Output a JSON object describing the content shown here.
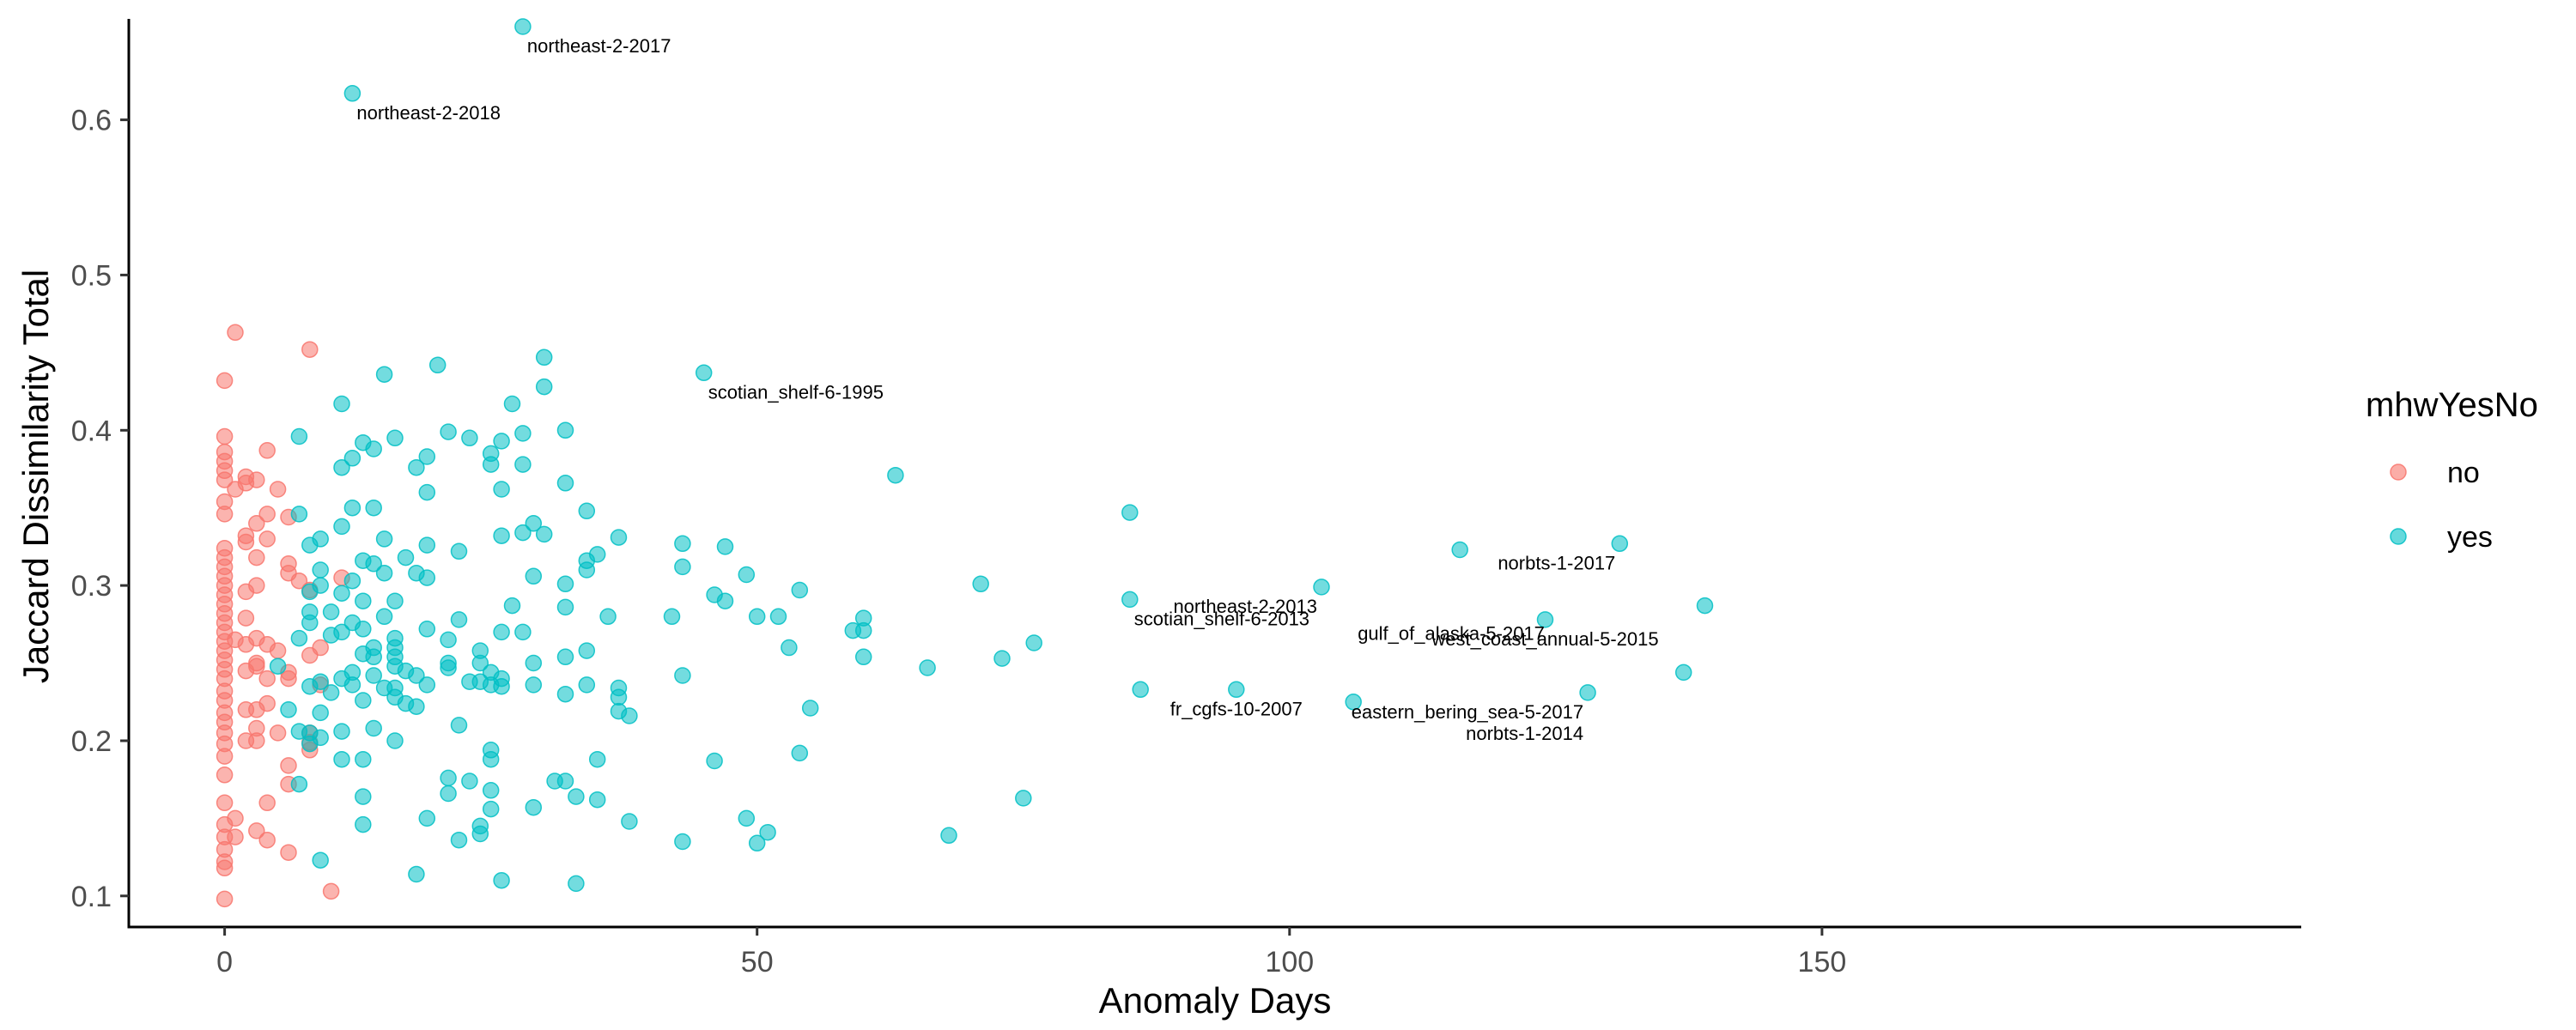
{
  "chart_data": {
    "type": "scatter",
    "xlabel": "Anomaly Days",
    "ylabel": "Jaccard Dissimilarity Total",
    "xlim": [
      -9,
      195
    ],
    "ylim": [
      0.08,
      0.665
    ],
    "x_ticks": [
      0,
      50,
      100,
      150
    ],
    "y_ticks": [
      0.1,
      0.2,
      0.3,
      0.4,
      0.5,
      0.6
    ],
    "x_tick_labels": [
      "0",
      "50",
      "100",
      "150"
    ],
    "y_tick_labels": [
      "0.1",
      "0.2",
      "0.3",
      "0.4",
      "0.5",
      "0.6"
    ],
    "grid": false,
    "legend": {
      "title": "mhwYesNo",
      "position": "right",
      "entries": [
        {
          "label": "no",
          "color": "#F8766D"
        },
        {
          "label": "yes",
          "color": "#00BFC4"
        }
      ]
    },
    "series": [
      {
        "name": "no",
        "color": "#F8766D",
        "points": [
          [
            0,
            0.098
          ],
          [
            0,
            0.118
          ],
          [
            0,
            0.122
          ],
          [
            0,
            0.13
          ],
          [
            0,
            0.138
          ],
          [
            0,
            0.146
          ],
          [
            0,
            0.16
          ],
          [
            0,
            0.178
          ],
          [
            0,
            0.19
          ],
          [
            0,
            0.198
          ],
          [
            0,
            0.205
          ],
          [
            0,
            0.212
          ],
          [
            0,
            0.218
          ],
          [
            0,
            0.226
          ],
          [
            0,
            0.232
          ],
          [
            0,
            0.24
          ],
          [
            0,
            0.246
          ],
          [
            0,
            0.252
          ],
          [
            0,
            0.258
          ],
          [
            0,
            0.264
          ],
          [
            0,
            0.27
          ],
          [
            0,
            0.276
          ],
          [
            0,
            0.282
          ],
          [
            0,
            0.288
          ],
          [
            0,
            0.294
          ],
          [
            0,
            0.3
          ],
          [
            0,
            0.306
          ],
          [
            0,
            0.312
          ],
          [
            0,
            0.318
          ],
          [
            0,
            0.324
          ],
          [
            0,
            0.346
          ],
          [
            0,
            0.354
          ],
          [
            0,
            0.368
          ],
          [
            0,
            0.374
          ],
          [
            0,
            0.38
          ],
          [
            0,
            0.386
          ],
          [
            0,
            0.396
          ],
          [
            0,
            0.432
          ],
          [
            1,
            0.138
          ],
          [
            1,
            0.15
          ],
          [
            1,
            0.265
          ],
          [
            1,
            0.362
          ],
          [
            1,
            0.463
          ],
          [
            2,
            0.2
          ],
          [
            2,
            0.22
          ],
          [
            2,
            0.245
          ],
          [
            2,
            0.262
          ],
          [
            2,
            0.279
          ],
          [
            2,
            0.296
          ],
          [
            2,
            0.328
          ],
          [
            2,
            0.332
          ],
          [
            2,
            0.366
          ],
          [
            2,
            0.37
          ],
          [
            3,
            0.142
          ],
          [
            3,
            0.2
          ],
          [
            3,
            0.208
          ],
          [
            3,
            0.22
          ],
          [
            3,
            0.248
          ],
          [
            3,
            0.25
          ],
          [
            3,
            0.266
          ],
          [
            3,
            0.3
          ],
          [
            3,
            0.318
          ],
          [
            3,
            0.34
          ],
          [
            3,
            0.368
          ],
          [
            4,
            0.136
          ],
          [
            4,
            0.16
          ],
          [
            4,
            0.224
          ],
          [
            4,
            0.24
          ],
          [
            4,
            0.262
          ],
          [
            4,
            0.33
          ],
          [
            4,
            0.346
          ],
          [
            4,
            0.387
          ],
          [
            5,
            0.205
          ],
          [
            5,
            0.258
          ],
          [
            5,
            0.362
          ],
          [
            6,
            0.128
          ],
          [
            6,
            0.172
          ],
          [
            6,
            0.184
          ],
          [
            6,
            0.24
          ],
          [
            6,
            0.244
          ],
          [
            6,
            0.308
          ],
          [
            6,
            0.314
          ],
          [
            6,
            0.344
          ],
          [
            7,
            0.303
          ],
          [
            8,
            0.194
          ],
          [
            8,
            0.199
          ],
          [
            8,
            0.205
          ],
          [
            8,
            0.255
          ],
          [
            8,
            0.297
          ],
          [
            8,
            0.452
          ],
          [
            9,
            0.236
          ],
          [
            9,
            0.26
          ],
          [
            10,
            0.103
          ],
          [
            11,
            0.305
          ]
        ]
      },
      {
        "name": "yes",
        "color": "#00BFC4",
        "points": [
          [
            5,
            0.248
          ],
          [
            6,
            0.22
          ],
          [
            7,
            0.206
          ],
          [
            7,
            0.172
          ],
          [
            7,
            0.266
          ],
          [
            7,
            0.346
          ],
          [
            7,
            0.396
          ],
          [
            8,
            0.198
          ],
          [
            8,
            0.205
          ],
          [
            8,
            0.235
          ],
          [
            8,
            0.276
          ],
          [
            8,
            0.283
          ],
          [
            8,
            0.296
          ],
          [
            8,
            0.326
          ],
          [
            9,
            0.123
          ],
          [
            9,
            0.202
          ],
          [
            9,
            0.218
          ],
          [
            9,
            0.238
          ],
          [
            9,
            0.3
          ],
          [
            9,
            0.31
          ],
          [
            9,
            0.33
          ],
          [
            10,
            0.231
          ],
          [
            10,
            0.268
          ],
          [
            10,
            0.283
          ],
          [
            11,
            0.188
          ],
          [
            11,
            0.206
          ],
          [
            11,
            0.24
          ],
          [
            11,
            0.27
          ],
          [
            11,
            0.295
          ],
          [
            11,
            0.338
          ],
          [
            11,
            0.376
          ],
          [
            11,
            0.417
          ],
          [
            12,
            0.236
          ],
          [
            12,
            0.244
          ],
          [
            12,
            0.276
          ],
          [
            12,
            0.303
          ],
          [
            12,
            0.35
          ],
          [
            12,
            0.382
          ],
          [
            12,
            0.617
          ],
          [
            13,
            0.146
          ],
          [
            13,
            0.164
          ],
          [
            13,
            0.188
          ],
          [
            13,
            0.226
          ],
          [
            13,
            0.256
          ],
          [
            13,
            0.272
          ],
          [
            13,
            0.29
          ],
          [
            13,
            0.316
          ],
          [
            13,
            0.392
          ],
          [
            14,
            0.208
          ],
          [
            14,
            0.242
          ],
          [
            14,
            0.254
          ],
          [
            14,
            0.26
          ],
          [
            14,
            0.314
          ],
          [
            14,
            0.35
          ],
          [
            14,
            0.388
          ],
          [
            15,
            0.234
          ],
          [
            15,
            0.28
          ],
          [
            15,
            0.308
          ],
          [
            15,
            0.33
          ],
          [
            15,
            0.436
          ],
          [
            16,
            0.2
          ],
          [
            16,
            0.228
          ],
          [
            16,
            0.234
          ],
          [
            16,
            0.248
          ],
          [
            16,
            0.254
          ],
          [
            16,
            0.26
          ],
          [
            16,
            0.266
          ],
          [
            16,
            0.29
          ],
          [
            16,
            0.395
          ],
          [
            17,
            0.224
          ],
          [
            17,
            0.245
          ],
          [
            17,
            0.318
          ],
          [
            18,
            0.114
          ],
          [
            18,
            0.222
          ],
          [
            18,
            0.242
          ],
          [
            18,
            0.308
          ],
          [
            18,
            0.376
          ],
          [
            19,
            0.15
          ],
          [
            19,
            0.236
          ],
          [
            19,
            0.272
          ],
          [
            19,
            0.305
          ],
          [
            19,
            0.326
          ],
          [
            19,
            0.36
          ],
          [
            19,
            0.383
          ],
          [
            20,
            0.442
          ],
          [
            21,
            0.166
          ],
          [
            21,
            0.176
          ],
          [
            21,
            0.247
          ],
          [
            21,
            0.25
          ],
          [
            21,
            0.265
          ],
          [
            21,
            0.399
          ],
          [
            22,
            0.136
          ],
          [
            22,
            0.21
          ],
          [
            22,
            0.278
          ],
          [
            22,
            0.322
          ],
          [
            23,
            0.174
          ],
          [
            23,
            0.238
          ],
          [
            23,
            0.395
          ],
          [
            24,
            0.14
          ],
          [
            24,
            0.145
          ],
          [
            24,
            0.238
          ],
          [
            24,
            0.25
          ],
          [
            24,
            0.258
          ],
          [
            25,
            0.156
          ],
          [
            25,
            0.168
          ],
          [
            25,
            0.188
          ],
          [
            25,
            0.194
          ],
          [
            25,
            0.236
          ],
          [
            25,
            0.244
          ],
          [
            25,
            0.378
          ],
          [
            25,
            0.385
          ],
          [
            26,
            0.11
          ],
          [
            26,
            0.235
          ],
          [
            26,
            0.24
          ],
          [
            26,
            0.27
          ],
          [
            26,
            0.332
          ],
          [
            26,
            0.362
          ],
          [
            26,
            0.393
          ],
          [
            27,
            0.287
          ],
          [
            27,
            0.417
          ],
          [
            28,
            0.27
          ],
          [
            28,
            0.334
          ],
          [
            28,
            0.378
          ],
          [
            28,
            0.398
          ],
          [
            28,
            0.66
          ],
          [
            29,
            0.157
          ],
          [
            29,
            0.236
          ],
          [
            29,
            0.25
          ],
          [
            29,
            0.306
          ],
          [
            29,
            0.34
          ],
          [
            30,
            0.333
          ],
          [
            30,
            0.428
          ],
          [
            30,
            0.447
          ],
          [
            31,
            0.174
          ],
          [
            32,
            0.174
          ],
          [
            32,
            0.23
          ],
          [
            32,
            0.254
          ],
          [
            32,
            0.286
          ],
          [
            32,
            0.301
          ],
          [
            32,
            0.366
          ],
          [
            32,
            0.4
          ],
          [
            33,
            0.108
          ],
          [
            33,
            0.164
          ],
          [
            34,
            0.236
          ],
          [
            34,
            0.258
          ],
          [
            34,
            0.31
          ],
          [
            34,
            0.316
          ],
          [
            34,
            0.348
          ],
          [
            35,
            0.162
          ],
          [
            35,
            0.188
          ],
          [
            35,
            0.32
          ],
          [
            36,
            0.28
          ],
          [
            37,
            0.219
          ],
          [
            37,
            0.228
          ],
          [
            37,
            0.234
          ],
          [
            37,
            0.331
          ],
          [
            38,
            0.148
          ],
          [
            38,
            0.216
          ],
          [
            42,
            0.28
          ],
          [
            43,
            0.135
          ],
          [
            43,
            0.242
          ],
          [
            43,
            0.312
          ],
          [
            43,
            0.327
          ],
          [
            45,
            0.437
          ],
          [
            46,
            0.187
          ],
          [
            46,
            0.294
          ],
          [
            47,
            0.29
          ],
          [
            47,
            0.325
          ],
          [
            49,
            0.15
          ],
          [
            49,
            0.307
          ],
          [
            50,
            0.134
          ],
          [
            50,
            0.28
          ],
          [
            51,
            0.141
          ],
          [
            52,
            0.28
          ],
          [
            53,
            0.26
          ],
          [
            54,
            0.192
          ],
          [
            54,
            0.297
          ],
          [
            55,
            0.221
          ],
          [
            59,
            0.271
          ],
          [
            60,
            0.254
          ],
          [
            60,
            0.271
          ],
          [
            60,
            0.279
          ],
          [
            63,
            0.371
          ],
          [
            66,
            0.247
          ],
          [
            68,
            0.139
          ],
          [
            71,
            0.301
          ],
          [
            73,
            0.253
          ],
          [
            75,
            0.163
          ],
          [
            76,
            0.263
          ],
          [
            85,
            0.291
          ],
          [
            85,
            0.347
          ],
          [
            86,
            0.233
          ],
          [
            95,
            0.233
          ],
          [
            103,
            0.299
          ],
          [
            106,
            0.225
          ],
          [
            116,
            0.323
          ],
          [
            124,
            0.278
          ],
          [
            128,
            0.231
          ],
          [
            131,
            0.327
          ],
          [
            137,
            0.244
          ],
          [
            139,
            0.287
          ]
        ]
      }
    ],
    "annotations": [
      {
        "text": "northeast-2-2017",
        "x": 28,
        "y": 0.66
      },
      {
        "text": "northeast-2-2018",
        "x": 12,
        "y": 0.617
      },
      {
        "text": "scotian_shelf-6-1995",
        "x": 45,
        "y": 0.437
      },
      {
        "text": "northeast-2-2013",
        "x": 103,
        "y": 0.299,
        "align": "right"
      },
      {
        "text": "norbts-1-2017",
        "x": 131,
        "y": 0.327,
        "align": "right"
      },
      {
        "text": "scotian_shelf-6-2013",
        "x": 85,
        "y": 0.291
      },
      {
        "text": "west_coast_annual-5-2015",
        "x": 124,
        "y": 0.278,
        "align": "center"
      },
      {
        "text": "gulf_of_alaska-5-2017",
        "x": 106,
        "y": 0.265,
        "raw": true
      },
      {
        "text": "eastern_bering_sea-5-2017",
        "x": 128,
        "y": 0.231,
        "align": "right"
      },
      {
        "text": "norbts-1-2014",
        "x": 128,
        "y": 0.231,
        "align": "right",
        "below": true
      },
      {
        "text": "fr_cgfs-10-2007",
        "x": 95,
        "y": 0.233,
        "align": "center"
      }
    ]
  }
}
